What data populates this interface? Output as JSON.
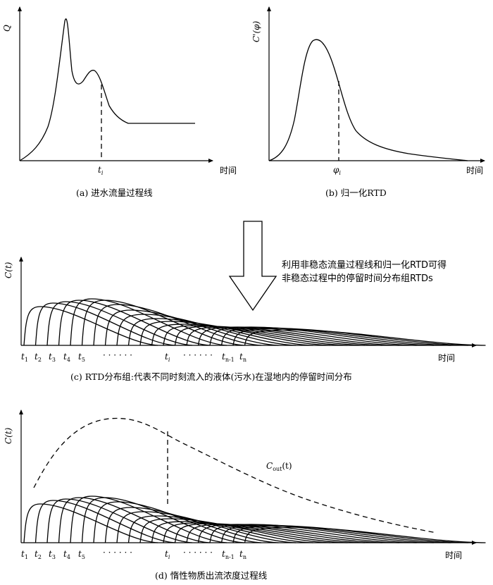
{
  "panel_a": {
    "ylabel": "Q",
    "xlabel": "时间",
    "marker": "t",
    "marker_sub": "i",
    "caption": "(a)  进水流量过程线"
  },
  "panel_b": {
    "ylabel": "C'(φ)",
    "xlabel": "时间",
    "marker": "φ",
    "marker_sub": "i",
    "caption": "(b)  归一化RTD"
  },
  "arrow_note": {
    "line1": "利用非稳态流量过程线和归一化RTD可得",
    "line2": "非稳态过程中的停留时间分布组RTDs"
  },
  "panel_c": {
    "ylabel": "C(t)",
    "xlabel": "时间",
    "caption": "(c)  RTD分布组:代表不同时刻流入的液体(污水)在湿地内的停留时间分布"
  },
  "panel_d": {
    "ylabel": "C(t)",
    "xlabel": "时间",
    "curve_label": "C",
    "curve_label_sub": "out",
    "curve_label_arg": "(t)",
    "caption": "(d)  惰性物质出流浓度过程线"
  },
  "time_ticks": {
    "t": "t",
    "subs": [
      "1",
      "2",
      "3",
      "4",
      "5",
      "i",
      "n-1",
      "n"
    ],
    "dots_left": "· · ·  · · ·",
    "dots_mid": "· · ·  · · ·"
  }
}
